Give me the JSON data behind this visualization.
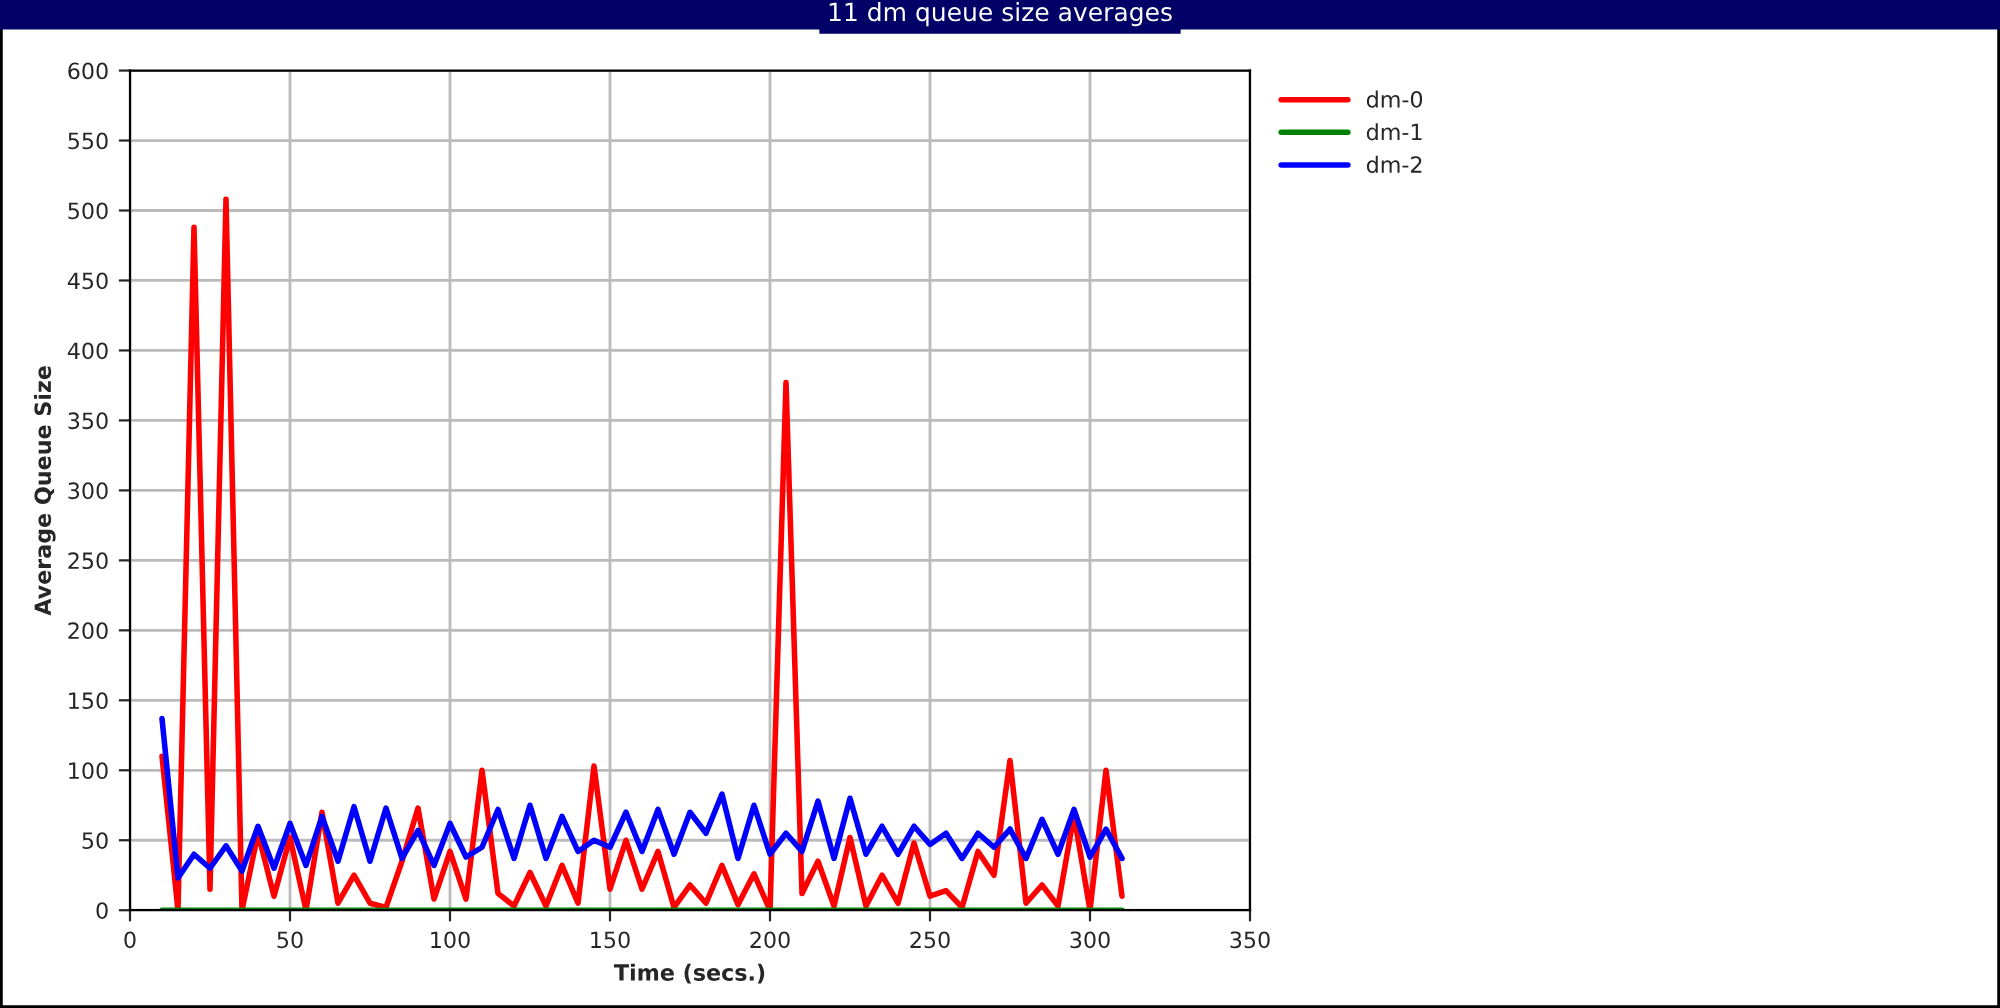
{
  "chart_data": {
    "type": "line",
    "title": "11 dm queue size averages",
    "xlabel": "Time (secs.)",
    "ylabel": "Average Queue Size",
    "x": [
      10,
      15,
      20,
      25,
      30,
      35,
      40,
      45,
      50,
      55,
      60,
      65,
      70,
      75,
      80,
      85,
      90,
      95,
      100,
      105,
      110,
      115,
      120,
      125,
      130,
      135,
      140,
      145,
      150,
      155,
      160,
      165,
      170,
      175,
      180,
      185,
      190,
      195,
      200,
      205,
      210,
      215,
      220,
      225,
      230,
      235,
      240,
      245,
      250,
      255,
      260,
      265,
      270,
      275,
      280,
      285,
      290,
      295,
      300,
      305,
      310
    ],
    "series": [
      {
        "name": "dm-0",
        "color": "#ff0000",
        "values": [
          110,
          0,
          488,
          15,
          508,
          0,
          55,
          10,
          52,
          0,
          70,
          5,
          25,
          5,
          2,
          35,
          73,
          8,
          42,
          8,
          100,
          12,
          3,
          27,
          3,
          32,
          5,
          103,
          15,
          50,
          15,
          42,
          2,
          18,
          5,
          32,
          4,
          26,
          0,
          377,
          12,
          35,
          3,
          52,
          3,
          25,
          5,
          48,
          10,
          14,
          2,
          42,
          25,
          107,
          5,
          18,
          3,
          68,
          0,
          100,
          10
        ]
      },
      {
        "name": "dm-1",
        "color": "#008000",
        "values": [
          0,
          0,
          0,
          0,
          0,
          0,
          0,
          0,
          0,
          0,
          0,
          0,
          0,
          0,
          0,
          0,
          0,
          0,
          0,
          0,
          0,
          0,
          0,
          0,
          0,
          0,
          0,
          0,
          0,
          0,
          0,
          0,
          0,
          0,
          0,
          0,
          0,
          0,
          0,
          0,
          0,
          0,
          0,
          0,
          0,
          0,
          0,
          0,
          0,
          0,
          0,
          0,
          0,
          0,
          0,
          0,
          0,
          0,
          0,
          0,
          0
        ]
      },
      {
        "name": "dm-2",
        "color": "#0000ff",
        "values": [
          137,
          23,
          40,
          30,
          46,
          28,
          60,
          30,
          62,
          32,
          67,
          35,
          74,
          35,
          73,
          37,
          57,
          32,
          62,
          38,
          45,
          72,
          37,
          75,
          37,
          67,
          42,
          50,
          45,
          70,
          42,
          72,
          40,
          70,
          55,
          83,
          37,
          75,
          40,
          55,
          42,
          78,
          37,
          80,
          40,
          60,
          40,
          60,
          47,
          55,
          37,
          55,
          45,
          58,
          37,
          65,
          40,
          72,
          38,
          58,
          37
        ]
      }
    ],
    "xlim": [
      0,
      350
    ],
    "xticks": [
      0,
      50,
      100,
      150,
      200,
      250,
      300,
      350
    ],
    "ylim": [
      0,
      600
    ],
    "yticks": [
      0,
      50,
      100,
      150,
      200,
      250,
      300,
      350,
      400,
      450,
      500,
      550,
      600
    ],
    "grid": true,
    "legend": "top right",
    "line_style": "solid",
    "marker": "none"
  }
}
